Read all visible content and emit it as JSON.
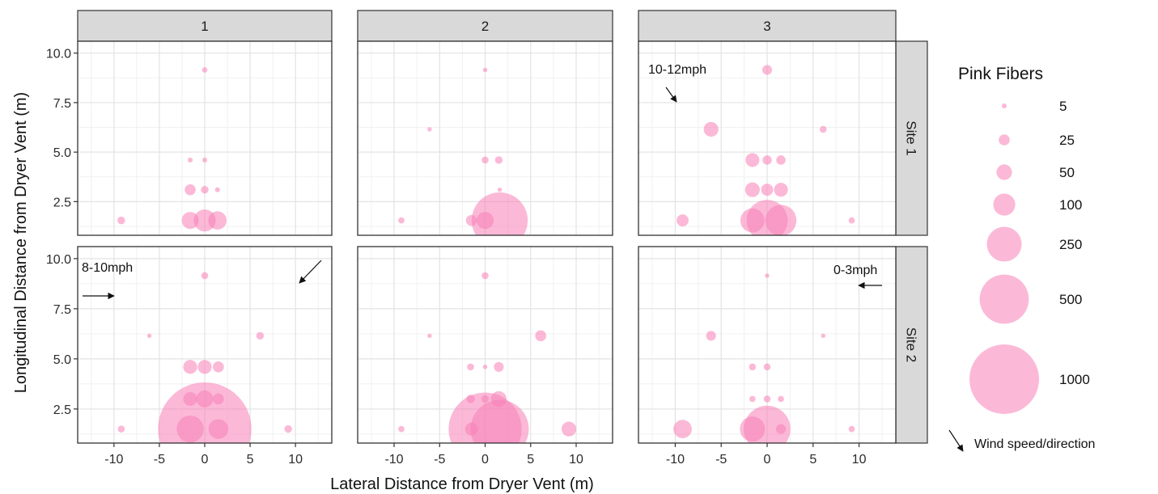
{
  "chart_data": {
    "type": "scatter",
    "title": "",
    "xlabel": "Lateral Distance from Dryer Vent (m)",
    "ylabel": "Longitudinal Distance from Dryer Vent (m)",
    "xlim": [
      -14,
      14
    ],
    "ylim": [
      0.8,
      10.6
    ],
    "x_ticks": [
      -10,
      -5,
      0,
      5,
      10
    ],
    "y_ticks": [
      2.5,
      5.0,
      7.5,
      10.0
    ],
    "x_tick_labels": [
      "-10",
      "-5",
      "0",
      "5",
      "10"
    ],
    "y_tick_labels": [
      "2.5",
      "5.0",
      "7.5",
      "10.0"
    ],
    "grid": true,
    "facet_columns": [
      "1",
      "2",
      "3"
    ],
    "facet_rows": [
      "Site 1",
      "Site 2"
    ],
    "point_color": "#f77fb6",
    "size_variable": "Pink Fibers",
    "legend": {
      "title": "Pink Fibers",
      "placement": "right",
      "entries": [
        5,
        25,
        50,
        100,
        250,
        500,
        1000
      ],
      "entry_labels": [
        "5",
        "25",
        "50",
        "100",
        "250",
        "500",
        "1000"
      ]
    },
    "wind_note": "Wind speed/direction",
    "panels": [
      {
        "row": "Site 1",
        "col": "1",
        "wind_label": "",
        "wind_direction": "",
        "points": [
          [
            0,
            9.15,
            6
          ],
          [
            -1.6,
            4.6,
            5
          ],
          [
            0,
            4.6,
            5
          ],
          [
            -1.6,
            3.1,
            25
          ],
          [
            0,
            3.1,
            12
          ],
          [
            1.4,
            3.1,
            5
          ],
          [
            -9.2,
            1.55,
            12
          ],
          [
            -1.6,
            1.55,
            60
          ],
          [
            0,
            1.55,
            100
          ],
          [
            1.4,
            1.55,
            70
          ]
        ]
      },
      {
        "row": "Site 1",
        "col": "2",
        "wind_label": "",
        "wind_direction": "",
        "points": [
          [
            0,
            9.15,
            4
          ],
          [
            -6.1,
            6.15,
            4
          ],
          [
            0,
            4.6,
            10
          ],
          [
            1.5,
            4.6,
            12
          ],
          [
            1.6,
            3.1,
            4
          ],
          [
            -9.2,
            1.55,
            8
          ],
          [
            -1.5,
            1.55,
            25
          ],
          [
            0,
            1.55,
            60
          ],
          [
            1.6,
            1.55,
            650
          ]
        ]
      },
      {
        "row": "Site 1",
        "col": "3",
        "wind_label": "10-12mph",
        "wind_direction": "south-east",
        "points": [
          [
            0,
            9.15,
            20
          ],
          [
            -6.1,
            6.15,
            45
          ],
          [
            6.1,
            6.15,
            10
          ],
          [
            -1.6,
            4.6,
            40
          ],
          [
            0,
            4.6,
            18
          ],
          [
            1.5,
            4.6,
            18
          ],
          [
            -1.6,
            3.1,
            45
          ],
          [
            0,
            3.1,
            30
          ],
          [
            1.5,
            3.1,
            40
          ],
          [
            -9.2,
            1.55,
            30
          ],
          [
            -1.6,
            1.55,
            120
          ],
          [
            0,
            1.55,
            350
          ],
          [
            1.5,
            1.55,
            200
          ],
          [
            9.2,
            1.55,
            8
          ]
        ]
      },
      {
        "row": "Site 2",
        "col": "1",
        "wind_label": "8-10mph",
        "wind_direction": "east / south-west",
        "points": [
          [
            0,
            9.15,
            10
          ],
          [
            -6.1,
            6.15,
            4
          ],
          [
            6.1,
            6.15,
            12
          ],
          [
            -1.6,
            4.6,
            40
          ],
          [
            0,
            4.6,
            40
          ],
          [
            1.5,
            4.6,
            25
          ],
          [
            -1.6,
            3.0,
            40
          ],
          [
            0,
            3.0,
            60
          ],
          [
            1.5,
            3.0,
            25
          ],
          [
            -9.2,
            1.5,
            10
          ],
          [
            -1.6,
            1.5,
            150
          ],
          [
            0,
            1.5,
            1800
          ],
          [
            1.5,
            1.5,
            80
          ],
          [
            9.2,
            1.5,
            12
          ]
        ]
      },
      {
        "row": "Site 2",
        "col": "2",
        "wind_label": "",
        "wind_direction": "",
        "points": [
          [
            0,
            9.15,
            10
          ],
          [
            -6.1,
            6.15,
            4
          ],
          [
            6.1,
            6.15,
            25
          ],
          [
            -1.6,
            4.6,
            10
          ],
          [
            0,
            4.6,
            4
          ],
          [
            1.5,
            4.6,
            20
          ],
          [
            -1.6,
            3.0,
            15
          ],
          [
            0,
            3.0,
            12
          ],
          [
            1.5,
            3.0,
            50
          ],
          [
            -9.2,
            1.5,
            8
          ],
          [
            -1.5,
            1.5,
            35
          ],
          [
            0,
            1.5,
            1100
          ],
          [
            1.6,
            1.5,
            700
          ],
          [
            9.2,
            1.5,
            45
          ]
        ]
      },
      {
        "row": "Site 2",
        "col": "3",
        "wind_label": "0-3mph",
        "wind_direction": "west",
        "points": [
          [
            0,
            9.15,
            4
          ],
          [
            -6.1,
            6.15,
            20
          ],
          [
            6.1,
            6.15,
            4
          ],
          [
            -1.6,
            4.6,
            10
          ],
          [
            0,
            4.6,
            10
          ],
          [
            -1.6,
            3.0,
            8
          ],
          [
            0,
            3.0,
            10
          ],
          [
            1.5,
            3.0,
            8
          ],
          [
            -9.2,
            1.5,
            70
          ],
          [
            -1.6,
            1.5,
            130
          ],
          [
            0,
            1.5,
            450
          ],
          [
            1.5,
            1.5,
            20
          ],
          [
            9.2,
            1.5,
            8
          ]
        ]
      }
    ]
  }
}
